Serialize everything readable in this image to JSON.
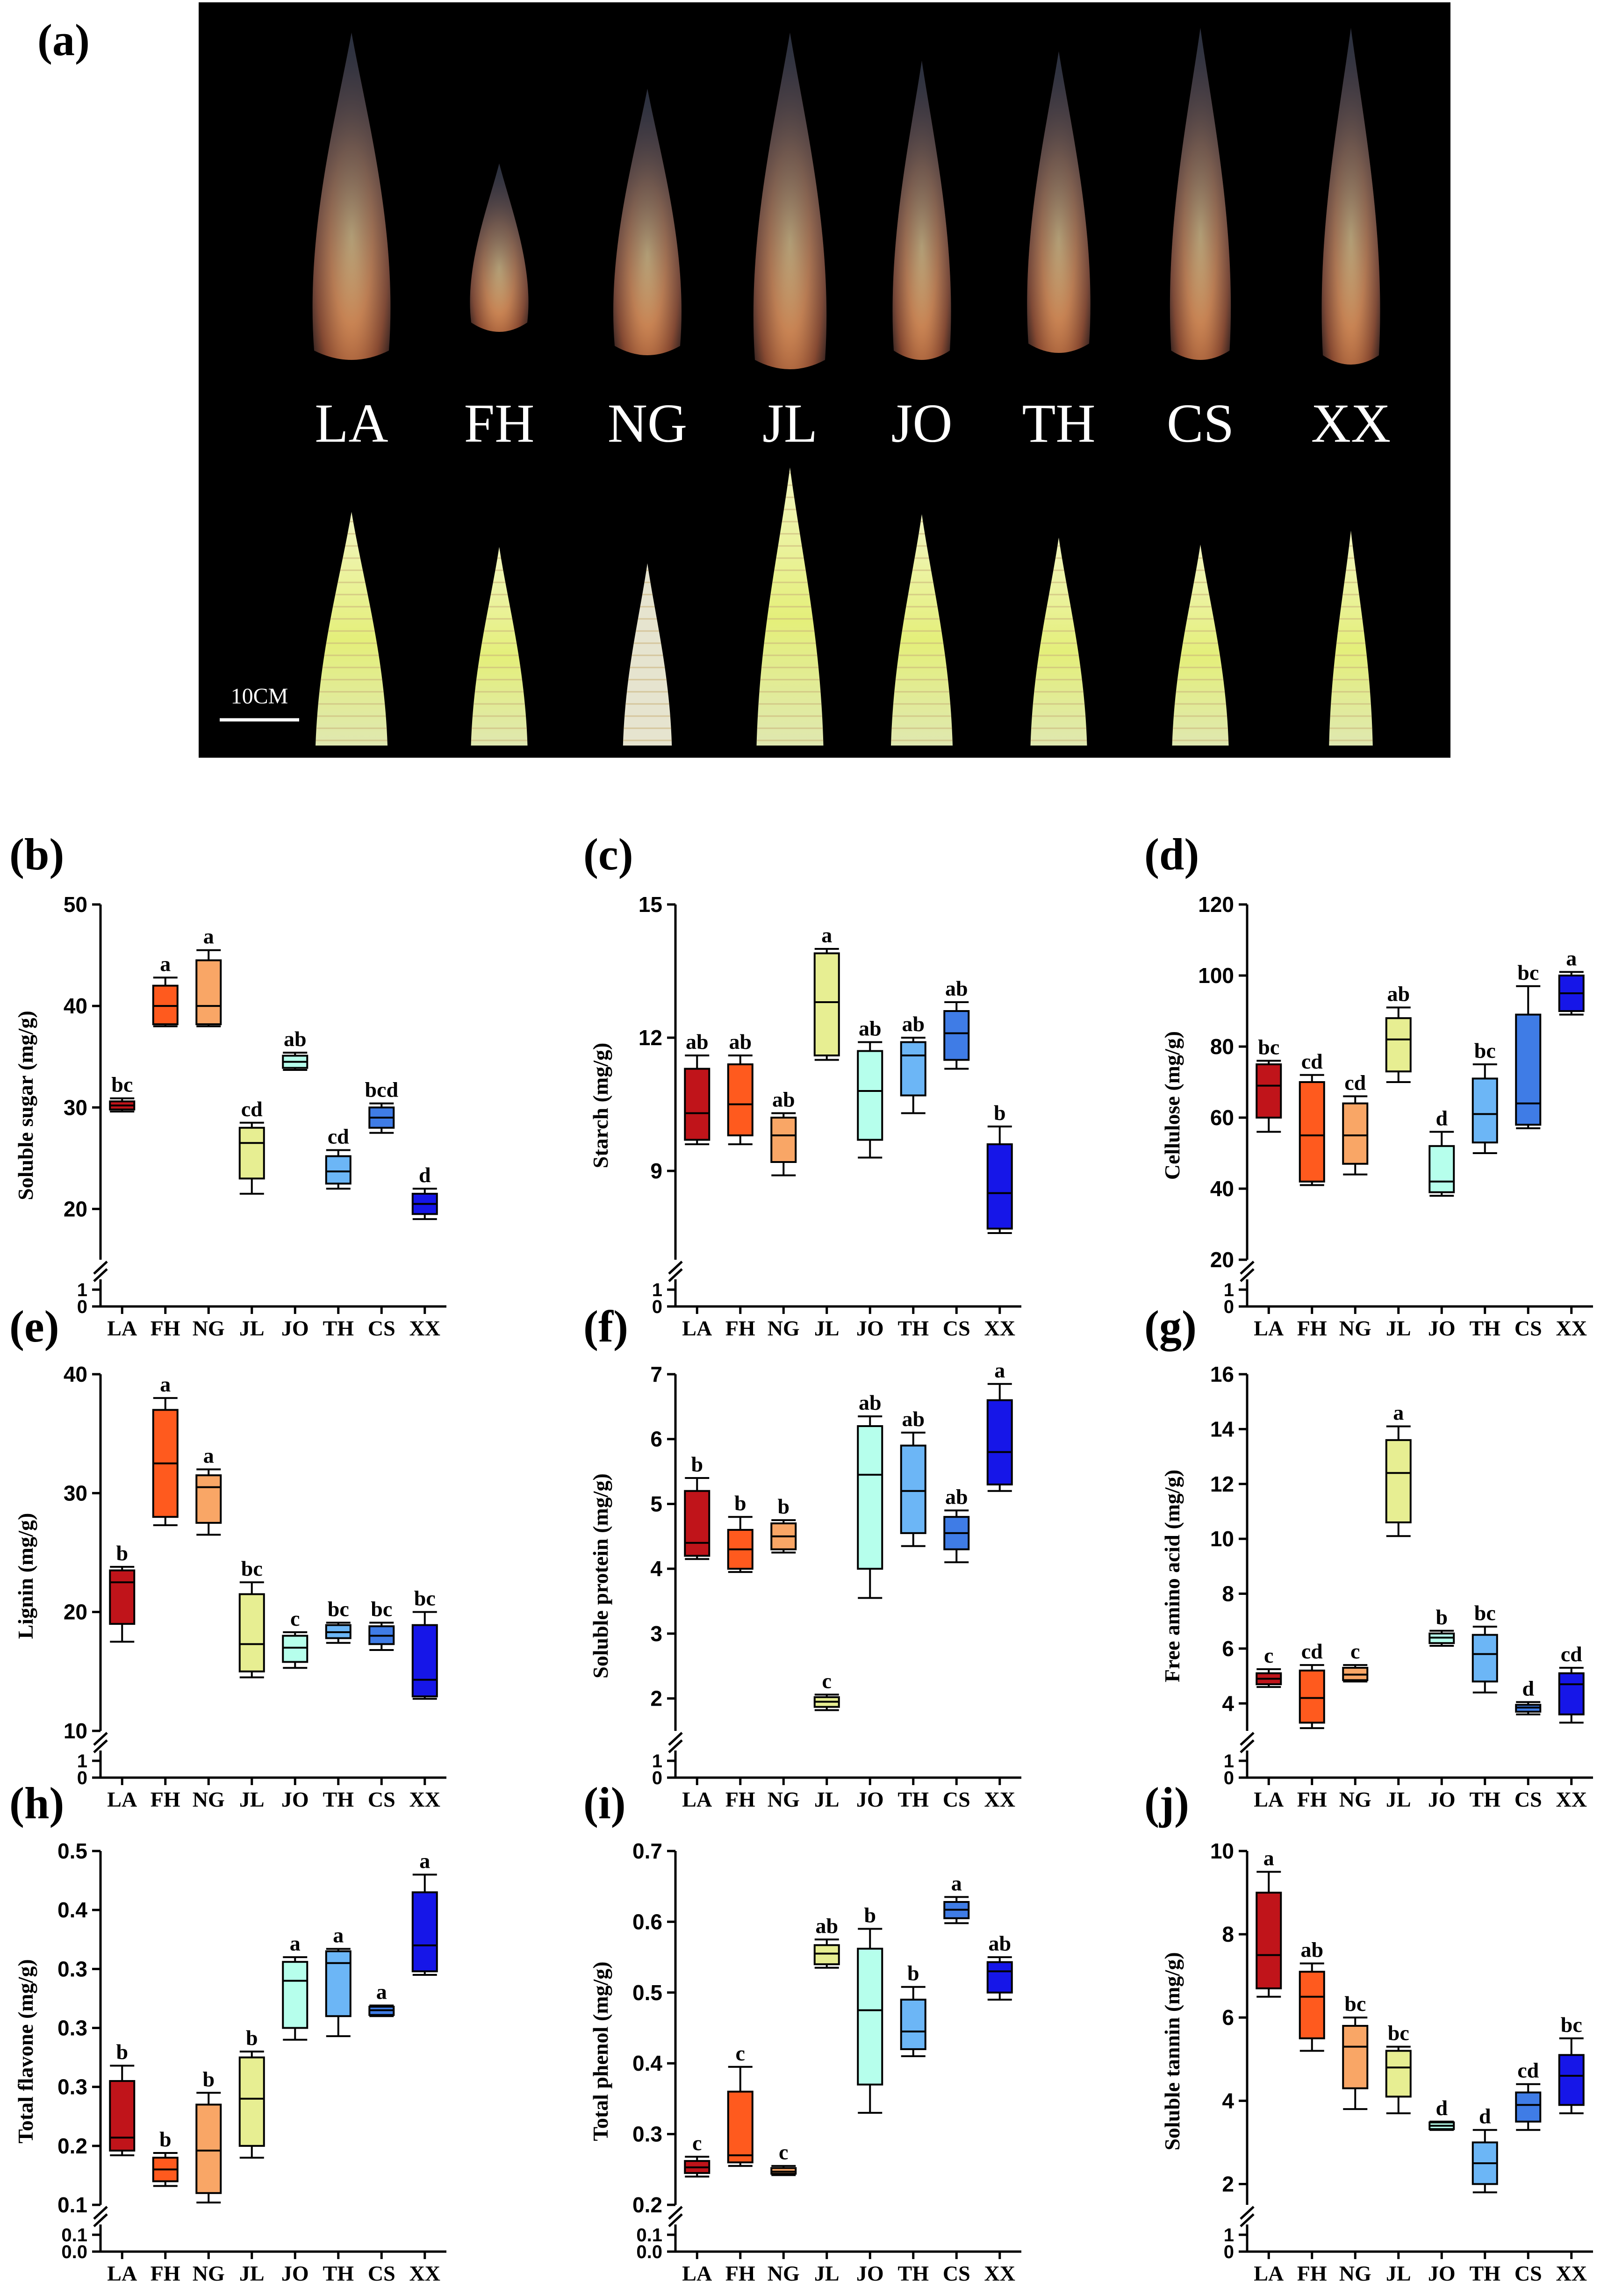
{
  "figure": {
    "photo_panel": {
      "label": "(a)",
      "accessions": [
        "LA",
        "FH",
        "NG",
        "JL",
        "JO",
        "TH",
        "CS",
        "XX"
      ],
      "scale_bar": "10CM"
    }
  },
  "colors": {
    "LA": "#c0141a",
    "FH": "#ff5a1e",
    "NG": "#f9a666",
    "JL": "#e7ee92",
    "JO": "#b6ffec",
    "TH": "#6cb6f6",
    "CS": "#3f7ce6",
    "XX": "#1616e8",
    "photo_bg": "#000000"
  },
  "chart_data": [
    {
      "panel": "(b)",
      "type": "box",
      "ylabel": "Soluble sugar (mg/g)",
      "categories": [
        "LA",
        "FH",
        "NG",
        "JL",
        "JO",
        "TH",
        "CS",
        "XX"
      ],
      "axis_break": true,
      "ylim": [
        15,
        50
      ],
      "yticks": [
        20,
        30,
        40,
        50
      ],
      "lower_ticks": [
        0,
        1
      ],
      "boxes": [
        {
          "min": 29.6,
          "q1": 29.8,
          "median": 30.2,
          "q3": 30.6,
          "max": 30.9,
          "letter": "bc"
        },
        {
          "min": 38.0,
          "q1": 38.2,
          "median": 40.0,
          "q3": 42.0,
          "max": 42.8,
          "letter": "a"
        },
        {
          "min": 38.0,
          "q1": 38.2,
          "median": 40.0,
          "q3": 44.5,
          "max": 45.5,
          "letter": "a"
        },
        {
          "min": 21.5,
          "q1": 23.0,
          "median": 26.5,
          "q3": 28.0,
          "max": 28.5,
          "letter": "cd"
        },
        {
          "min": 33.7,
          "q1": 33.9,
          "median": 34.5,
          "q3": 35.1,
          "max": 35.4,
          "letter": "ab"
        },
        {
          "min": 22.0,
          "q1": 22.5,
          "median": 23.7,
          "q3": 25.2,
          "max": 25.8,
          "letter": "cd"
        },
        {
          "min": 27.5,
          "q1": 28.0,
          "median": 29.0,
          "q3": 30.0,
          "max": 30.4,
          "letter": "bcd"
        },
        {
          "min": 19.0,
          "q1": 19.5,
          "median": 20.5,
          "q3": 21.5,
          "max": 22.0,
          "letter": "d"
        }
      ]
    },
    {
      "panel": "(c)",
      "type": "box",
      "ylabel": "Starch (mg/g)",
      "categories": [
        "LA",
        "FH",
        "NG",
        "JL",
        "JO",
        "TH",
        "CS",
        "XX"
      ],
      "axis_break": true,
      "ylim": [
        7,
        15
      ],
      "yticks": [
        9,
        12,
        15
      ],
      "lower_ticks": [
        0,
        1
      ],
      "boxes": [
        {
          "min": 9.6,
          "q1": 9.7,
          "median": 10.3,
          "q3": 11.3,
          "max": 11.6,
          "letter": "ab"
        },
        {
          "min": 9.6,
          "q1": 9.8,
          "median": 10.5,
          "q3": 11.4,
          "max": 11.6,
          "letter": "ab"
        },
        {
          "min": 8.9,
          "q1": 9.2,
          "median": 9.8,
          "q3": 10.2,
          "max": 10.3,
          "letter": "ab"
        },
        {
          "min": 11.5,
          "q1": 11.6,
          "median": 12.8,
          "q3": 13.9,
          "max": 14.0,
          "letter": "a"
        },
        {
          "min": 9.3,
          "q1": 9.7,
          "median": 10.8,
          "q3": 11.7,
          "max": 11.9,
          "letter": "ab"
        },
        {
          "min": 10.3,
          "q1": 10.7,
          "median": 11.6,
          "q3": 11.9,
          "max": 12.0,
          "letter": "ab"
        },
        {
          "min": 11.3,
          "q1": 11.5,
          "median": 12.1,
          "q3": 12.6,
          "max": 12.8,
          "letter": "ab"
        },
        {
          "min": 7.6,
          "q1": 7.7,
          "median": 8.5,
          "q3": 9.6,
          "max": 10.0,
          "letter": "b"
        }
      ]
    },
    {
      "panel": "(d)",
      "type": "box",
      "ylabel": "Cellulose (mg/g)",
      "categories": [
        "LA",
        "FH",
        "NG",
        "JL",
        "JO",
        "TH",
        "CS",
        "XX"
      ],
      "axis_break": true,
      "ylim": [
        20,
        120
      ],
      "yticks": [
        20,
        40,
        60,
        80,
        100,
        120
      ],
      "lower_ticks": [
        0,
        1
      ],
      "boxes": [
        {
          "min": 56,
          "q1": 60,
          "median": 69,
          "q3": 75,
          "max": 76,
          "letter": "bc"
        },
        {
          "min": 41,
          "q1": 42,
          "median": 55,
          "q3": 70,
          "max": 72,
          "letter": "cd"
        },
        {
          "min": 44,
          "q1": 47,
          "median": 55,
          "q3": 64,
          "max": 66,
          "letter": "cd"
        },
        {
          "min": 70,
          "q1": 73,
          "median": 82,
          "q3": 88,
          "max": 91,
          "letter": "ab"
        },
        {
          "min": 38,
          "q1": 39,
          "median": 42,
          "q3": 52,
          "max": 56,
          "letter": "d"
        },
        {
          "min": 50,
          "q1": 53,
          "median": 61,
          "q3": 71,
          "max": 75,
          "letter": "bc"
        },
        {
          "min": 57,
          "q1": 58,
          "median": 64,
          "q3": 89,
          "max": 97,
          "letter": "bc"
        },
        {
          "min": 89,
          "q1": 90,
          "median": 95,
          "q3": 100,
          "max": 101,
          "letter": "a"
        }
      ]
    },
    {
      "panel": "(e)",
      "type": "box",
      "ylabel": "Lignin (mg/g)",
      "categories": [
        "LA",
        "FH",
        "NG",
        "JL",
        "JO",
        "TH",
        "CS",
        "XX"
      ],
      "axis_break": true,
      "ylim": [
        10,
        40
      ],
      "yticks": [
        10,
        20,
        30,
        40
      ],
      "lower_ticks": [
        0,
        1
      ],
      "boxes": [
        {
          "min": 17.5,
          "q1": 19.0,
          "median": 22.5,
          "q3": 23.5,
          "max": 23.8,
          "letter": "b"
        },
        {
          "min": 27.3,
          "q1": 28.0,
          "median": 32.5,
          "q3": 37.0,
          "max": 38.0,
          "letter": "a"
        },
        {
          "min": 26.5,
          "q1": 27.5,
          "median": 30.5,
          "q3": 31.5,
          "max": 32.0,
          "letter": "a"
        },
        {
          "min": 14.5,
          "q1": 15.0,
          "median": 17.3,
          "q3": 21.5,
          "max": 22.5,
          "letter": "bc"
        },
        {
          "min": 15.3,
          "q1": 15.8,
          "median": 17.0,
          "q3": 18.0,
          "max": 18.3,
          "letter": "c"
        },
        {
          "min": 17.4,
          "q1": 17.8,
          "median": 18.3,
          "q3": 18.9,
          "max": 19.1,
          "letter": "bc"
        },
        {
          "min": 16.8,
          "q1": 17.3,
          "median": 18.0,
          "q3": 18.8,
          "max": 19.1,
          "letter": "bc"
        },
        {
          "min": 12.7,
          "q1": 12.9,
          "median": 14.3,
          "q3": 18.9,
          "max": 20.0,
          "letter": "bc"
        }
      ]
    },
    {
      "panel": "(f)",
      "type": "box",
      "ylabel": "Soluble protein (mg/g)",
      "categories": [
        "LA",
        "FH",
        "NG",
        "JL",
        "JO",
        "TH",
        "CS",
        "XX"
      ],
      "axis_break": true,
      "ylim": [
        1.5,
        7
      ],
      "yticks": [
        2,
        3,
        4,
        5,
        6,
        7
      ],
      "lower_ticks": [
        0,
        1
      ],
      "boxes": [
        {
          "min": 4.15,
          "q1": 4.2,
          "median": 4.4,
          "q3": 5.2,
          "max": 5.4,
          "letter": "b"
        },
        {
          "min": 3.95,
          "q1": 4.0,
          "median": 4.3,
          "q3": 4.6,
          "max": 4.8,
          "letter": "b"
        },
        {
          "min": 4.25,
          "q1": 4.3,
          "median": 4.5,
          "q3": 4.7,
          "max": 4.75,
          "letter": "b"
        },
        {
          "min": 1.82,
          "q1": 1.87,
          "median": 1.95,
          "q3": 2.02,
          "max": 2.06,
          "letter": "c"
        },
        {
          "min": 3.55,
          "q1": 4.0,
          "median": 5.45,
          "q3": 6.2,
          "max": 6.35,
          "letter": "ab"
        },
        {
          "min": 4.35,
          "q1": 4.55,
          "median": 5.2,
          "q3": 5.9,
          "max": 6.1,
          "letter": "ab"
        },
        {
          "min": 4.1,
          "q1": 4.3,
          "median": 4.55,
          "q3": 4.8,
          "max": 4.9,
          "letter": "ab"
        },
        {
          "min": 5.2,
          "q1": 5.3,
          "median": 5.8,
          "q3": 6.6,
          "max": 6.85,
          "letter": "a"
        }
      ]
    },
    {
      "panel": "(g)",
      "type": "box",
      "ylabel": "Free amino acid (mg/g)",
      "categories": [
        "LA",
        "FH",
        "NG",
        "JL",
        "JO",
        "TH",
        "CS",
        "XX"
      ],
      "axis_break": true,
      "ylim": [
        3,
        16
      ],
      "yticks": [
        4,
        6,
        8,
        10,
        12,
        14,
        16
      ],
      "lower_ticks": [
        0,
        1
      ],
      "boxes": [
        {
          "min": 4.6,
          "q1": 4.7,
          "median": 4.9,
          "q3": 5.1,
          "max": 5.25,
          "letter": "c"
        },
        {
          "min": 3.1,
          "q1": 3.3,
          "median": 4.2,
          "q3": 5.2,
          "max": 5.4,
          "letter": "cd"
        },
        {
          "min": 4.8,
          "q1": 4.85,
          "median": 5.05,
          "q3": 5.3,
          "max": 5.4,
          "letter": "c"
        },
        {
          "min": 10.1,
          "q1": 10.6,
          "median": 12.4,
          "q3": 13.6,
          "max": 14.1,
          "letter": "a"
        },
        {
          "min": 6.1,
          "q1": 6.2,
          "median": 6.4,
          "q3": 6.55,
          "max": 6.65,
          "letter": "b"
        },
        {
          "min": 4.4,
          "q1": 4.8,
          "median": 5.8,
          "q3": 6.5,
          "max": 6.8,
          "letter": "bc"
        },
        {
          "min": 3.6,
          "q1": 3.7,
          "median": 3.85,
          "q3": 3.95,
          "max": 4.05,
          "letter": "d"
        },
        {
          "min": 3.3,
          "q1": 3.6,
          "median": 4.7,
          "q3": 5.1,
          "max": 5.3,
          "letter": "cd"
        }
      ]
    },
    {
      "panel": "(h)",
      "type": "box",
      "ylabel": "Total flavone (mg/g)",
      "categories": [
        "LA",
        "FH",
        "NG",
        "JL",
        "JO",
        "TH",
        "CS",
        "XX"
      ],
      "axis_break": true,
      "ylim": [
        0.15,
        0.45
      ],
      "yticks": [
        0.15,
        0.2,
        0.25,
        0.3,
        0.35,
        0.4,
        0.45
      ],
      "lower_ticks": [
        0.0,
        0.1
      ],
      "boxes": [
        {
          "min": 0.192,
          "q1": 0.196,
          "median": 0.207,
          "q3": 0.255,
          "max": 0.268,
          "letter": "b"
        },
        {
          "min": 0.166,
          "q1": 0.17,
          "median": 0.18,
          "q3": 0.19,
          "max": 0.194,
          "letter": "b"
        },
        {
          "min": 0.152,
          "q1": 0.16,
          "median": 0.196,
          "q3": 0.235,
          "max": 0.245,
          "letter": "b"
        },
        {
          "min": 0.19,
          "q1": 0.2,
          "median": 0.24,
          "q3": 0.275,
          "max": 0.28,
          "letter": "b"
        },
        {
          "min": 0.29,
          "q1": 0.3,
          "median": 0.34,
          "q3": 0.356,
          "max": 0.36,
          "letter": "a"
        },
        {
          "min": 0.293,
          "q1": 0.31,
          "median": 0.355,
          "q3": 0.365,
          "max": 0.367,
          "letter": "a"
        },
        {
          "min": 0.31,
          "q1": 0.311,
          "median": 0.315,
          "q3": 0.318,
          "max": 0.319,
          "letter": "a"
        },
        {
          "min": 0.345,
          "q1": 0.348,
          "median": 0.37,
          "q3": 0.415,
          "max": 0.43,
          "letter": "a"
        }
      ]
    },
    {
      "panel": "(i)",
      "type": "box",
      "ylabel": "Total phenol (mg/g)",
      "categories": [
        "LA",
        "FH",
        "NG",
        "JL",
        "JO",
        "TH",
        "CS",
        "XX"
      ],
      "axis_break": true,
      "ylim": [
        0.2,
        0.7
      ],
      "yticks": [
        0.2,
        0.3,
        0.4,
        0.5,
        0.6,
        0.7
      ],
      "lower_ticks": [
        0.0,
        0.1
      ],
      "boxes": [
        {
          "min": 0.24,
          "q1": 0.245,
          "median": 0.253,
          "q3": 0.262,
          "max": 0.268,
          "letter": "c"
        },
        {
          "min": 0.255,
          "q1": 0.26,
          "median": 0.27,
          "q3": 0.36,
          "max": 0.395,
          "letter": "c"
        },
        {
          "min": 0.242,
          "q1": 0.244,
          "median": 0.247,
          "q3": 0.252,
          "max": 0.255,
          "letter": "c"
        },
        {
          "min": 0.535,
          "q1": 0.54,
          "median": 0.555,
          "q3": 0.567,
          "max": 0.575,
          "letter": "ab"
        },
        {
          "min": 0.33,
          "q1": 0.37,
          "median": 0.475,
          "q3": 0.562,
          "max": 0.59,
          "letter": "b"
        },
        {
          "min": 0.41,
          "q1": 0.42,
          "median": 0.445,
          "q3": 0.49,
          "max": 0.508,
          "letter": "b"
        },
        {
          "min": 0.598,
          "q1": 0.605,
          "median": 0.617,
          "q3": 0.628,
          "max": 0.635,
          "letter": "a"
        },
        {
          "min": 0.49,
          "q1": 0.5,
          "median": 0.53,
          "q3": 0.543,
          "max": 0.55,
          "letter": "ab"
        }
      ]
    },
    {
      "panel": "(j)",
      "type": "box",
      "ylabel": "Soluble tannin (mg/g)",
      "categories": [
        "LA",
        "FH",
        "NG",
        "JL",
        "JO",
        "TH",
        "CS",
        "XX"
      ],
      "axis_break": true,
      "ylim": [
        1.5,
        10
      ],
      "yticks": [
        2,
        4,
        6,
        8,
        10
      ],
      "lower_ticks": [
        0,
        1
      ],
      "boxes": [
        {
          "min": 6.5,
          "q1": 6.7,
          "median": 7.5,
          "q3": 9.0,
          "max": 9.5,
          "letter": "a"
        },
        {
          "min": 5.2,
          "q1": 5.5,
          "median": 6.5,
          "q3": 7.1,
          "max": 7.3,
          "letter": "ab"
        },
        {
          "min": 3.8,
          "q1": 4.3,
          "median": 5.3,
          "q3": 5.8,
          "max": 6.0,
          "letter": "bc"
        },
        {
          "min": 3.7,
          "q1": 4.1,
          "median": 4.8,
          "q3": 5.2,
          "max": 5.3,
          "letter": "bc"
        },
        {
          "min": 3.3,
          "q1": 3.32,
          "median": 3.4,
          "q3": 3.48,
          "max": 3.5,
          "letter": "d"
        },
        {
          "min": 1.8,
          "q1": 2.0,
          "median": 2.5,
          "q3": 3.0,
          "max": 3.3,
          "letter": "d"
        },
        {
          "min": 3.3,
          "q1": 3.5,
          "median": 3.9,
          "q3": 4.2,
          "max": 4.4,
          "letter": "cd"
        },
        {
          "min": 3.7,
          "q1": 3.9,
          "median": 4.6,
          "q3": 5.1,
          "max": 5.5,
          "letter": "bc"
        }
      ]
    }
  ]
}
